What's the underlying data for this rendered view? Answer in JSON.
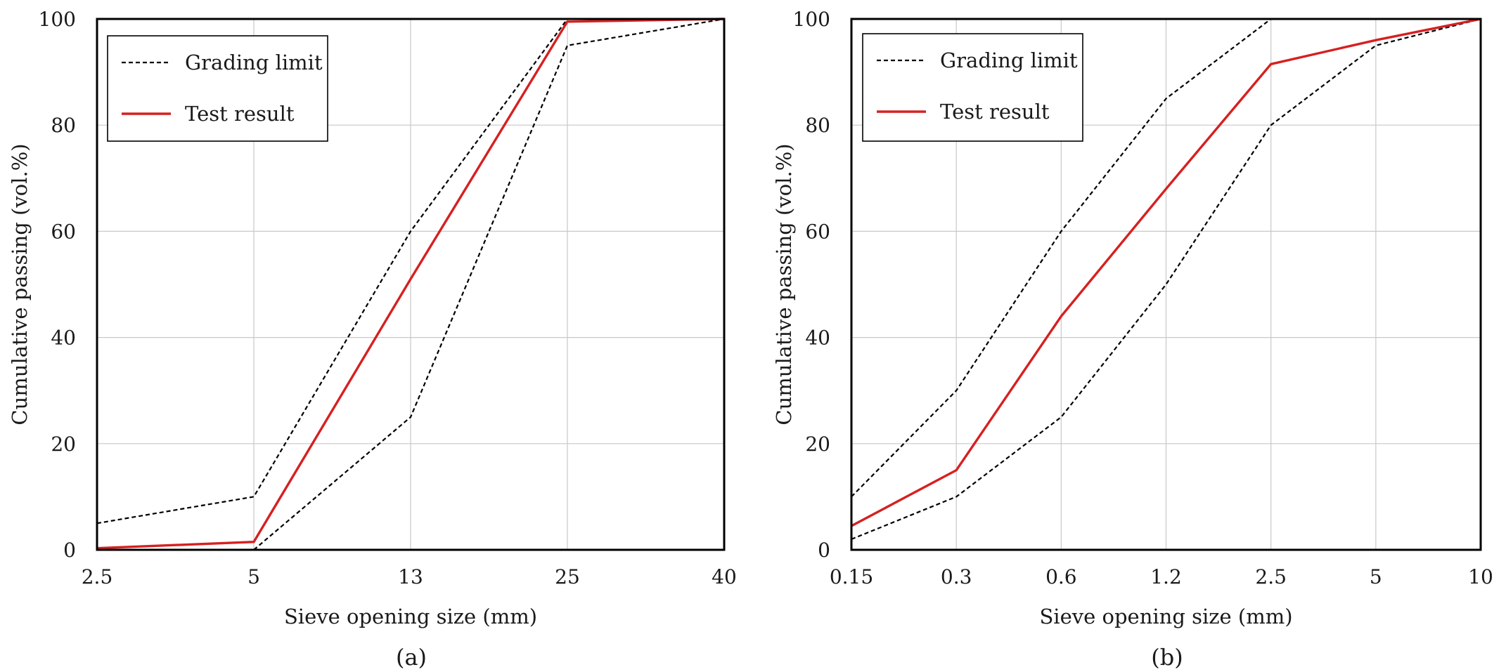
{
  "chart_data": [
    {
      "type": "line",
      "panel_label": "(a)",
      "title": "",
      "xlabel": "Sieve opening size (mm)",
      "ylabel": "Cumulative passing (vol.%)",
      "categories": [
        "2.5",
        "5",
        "13",
        "25",
        "40"
      ],
      "ylim": [
        0,
        100
      ],
      "yticks": [
        "0",
        "20",
        "40",
        "60",
        "80",
        "100"
      ],
      "grid": true,
      "legend_position": "top-left",
      "legend": [
        {
          "label": "Grading limit",
          "style": "dashed",
          "color": "#000000"
        },
        {
          "label": "Test result",
          "style": "solid",
          "color": "#d62020"
        }
      ],
      "series": [
        {
          "name": "Grading limit",
          "role": "upper",
          "values": [
            5,
            10,
            60,
            100,
            100
          ]
        },
        {
          "name": "Grading limit",
          "role": "lower",
          "values": [
            null,
            0,
            25,
            95,
            100
          ]
        },
        {
          "name": "Test result",
          "role": "result",
          "values": [
            0.3,
            1.5,
            51,
            99.5,
            100
          ]
        }
      ]
    },
    {
      "type": "line",
      "panel_label": "(b)",
      "title": "",
      "xlabel": "Sieve opening size (mm)",
      "ylabel": "Cumulative passing (vol.%)",
      "categories": [
        "0.15",
        "0.3",
        "0.6",
        "1.2",
        "2.5",
        "5",
        "10"
      ],
      "ylim": [
        0,
        100
      ],
      "yticks": [
        "0",
        "20",
        "40",
        "60",
        "80",
        "100"
      ],
      "grid": true,
      "legend_position": "top-left",
      "legend": [
        {
          "label": "Grading limit",
          "style": "dashed",
          "color": "#000000"
        },
        {
          "label": "Test result",
          "style": "solid",
          "color": "#d62020"
        }
      ],
      "series": [
        {
          "name": "Grading limit",
          "role": "upper",
          "values": [
            10,
            30,
            60,
            85,
            100,
            null,
            null
          ]
        },
        {
          "name": "Grading limit",
          "role": "lower",
          "values": [
            2,
            10,
            25,
            50,
            80,
            95,
            100
          ]
        },
        {
          "name": "Test result",
          "role": "result",
          "values": [
            4.5,
            15,
            44,
            68,
            91.5,
            96,
            100
          ]
        }
      ]
    }
  ]
}
